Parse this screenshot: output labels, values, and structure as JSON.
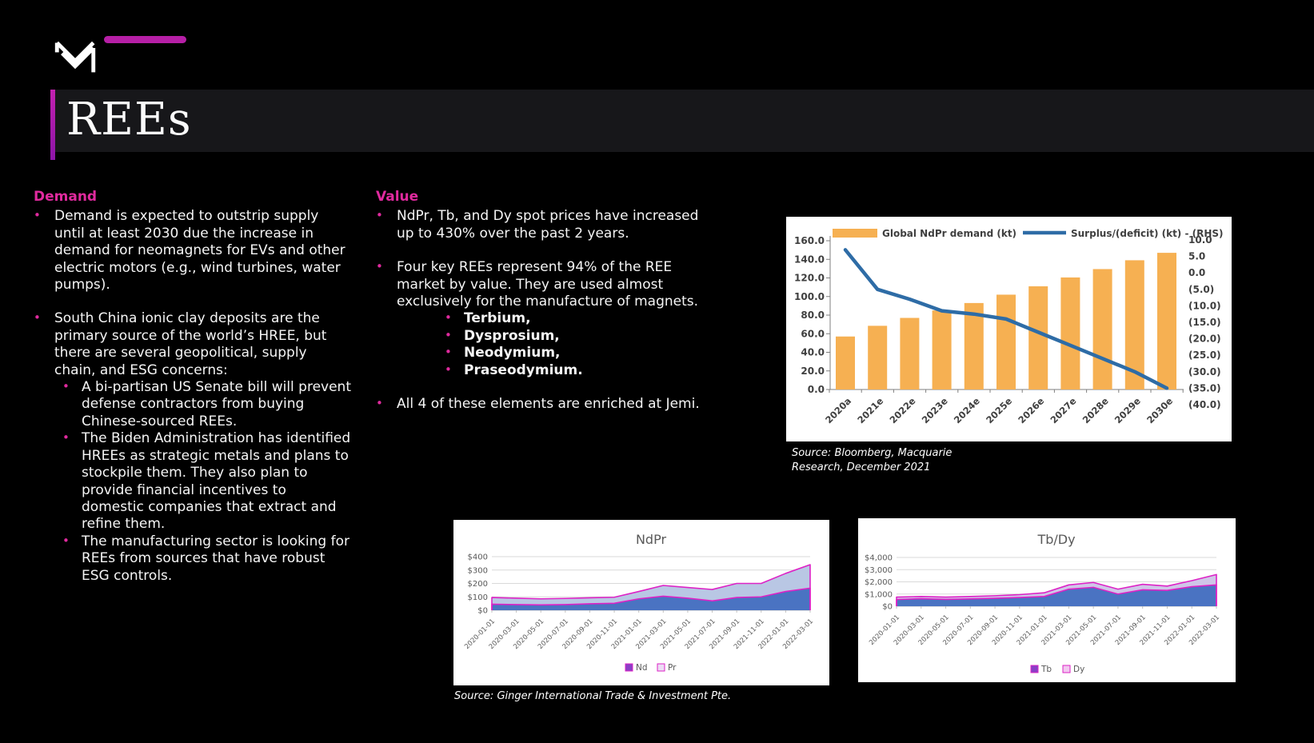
{
  "slide": {
    "title": "REEs"
  },
  "brand": {
    "logo_icon": "m-chevron-logo",
    "dash_icon": "magenta-dash"
  },
  "demand": {
    "heading": "Demand",
    "bullets": [
      {
        "text": "Demand is expected to outstrip supply until at least 2030 due the increase in demand for neomagnets for EVs and other electric motors (e.g., wind turbines, water pumps)."
      },
      {
        "text": "South China ionic clay deposits are the primary source of the world’s HREE, but there are several geopolitical, supply chain, and ESG concerns:",
        "children": [
          {
            "text": "A bi-partisan US Senate bill will prevent defense contractors from buying Chinese-sourced REEs."
          },
          {
            "text": "The Biden Administration has identified HREEs as strategic metals and plans to stockpile them. They also plan to provide financial incentives to domestic companies that extract and refine them."
          },
          {
            "text": "The manufacturing sector is looking for REEs from sources that have robust ESG controls."
          }
        ]
      }
    ]
  },
  "value": {
    "heading": "Value",
    "bullets": [
      {
        "text": "NdPr, Tb, and Dy spot prices have increased up to 430% over the past 2 years."
      },
      {
        "text": "Four key REEs represent 94% of the REE market by value. They are used almost exclusively for the manufacture of magnets.",
        "children": [
          {
            "text": "Terbium,",
            "bold": true
          },
          {
            "text": "Dysprosium,",
            "bold": true
          },
          {
            "text": "Neodymium,",
            "bold": true
          },
          {
            "text": "Praseodymium.",
            "bold": true
          }
        ]
      },
      {
        "text": "All 4 of these elements are enriched at Jemi."
      }
    ]
  },
  "sources": {
    "top_chart_line1": "Source: Bloomberg, Macquarie",
    "top_chart_line2": "Research, December 2021",
    "bottom_chart": "Source: Ginger International Trade & Investment Pte."
  },
  "chart_data": [
    {
      "type": "bar+line",
      "title": "",
      "categories": [
        "2020a",
        "2021e",
        "2022e",
        "2023e",
        "2024e",
        "2025e",
        "2026e",
        "2027e",
        "2028e",
        "2029e",
        "2030e"
      ],
      "series": [
        {
          "name": "Global NdPr demand (kt)",
          "type": "bar",
          "axis": "left",
          "values": [
            57,
            68.5,
            77,
            85,
            93,
            102,
            111,
            120.5,
            129.5,
            139,
            147
          ]
        },
        {
          "name": "Surplus/(deficit) (kt) - (RHS)",
          "type": "line",
          "axis": "right",
          "values": [
            7,
            -5,
            -8,
            -11.5,
            -12.5,
            -14,
            -18,
            -22,
            -26,
            -30,
            -35
          ]
        }
      ],
      "left_axis": {
        "min": 0,
        "max": 160,
        "step": 20
      },
      "right_axis": {
        "min": -40,
        "max": 10,
        "step": 5,
        "negative_format": "parentheses"
      },
      "legend_position": "top",
      "grid": false
    },
    {
      "type": "area",
      "stacked": true,
      "title": "NdPr",
      "x": [
        "2020-01-01",
        "2020-03-01",
        "2020-05-01",
        "2020-07-01",
        "2020-09-01",
        "2020-11-01",
        "2021-01-01",
        "2021-03-01",
        "2021-05-01",
        "2021-07-01",
        "2021-09-01",
        "2021-11-01",
        "2022-01-01",
        "2022-03-01"
      ],
      "series": [
        {
          "name": "Nd",
          "values": [
            45,
            42,
            40,
            42,
            48,
            52,
            85,
            105,
            90,
            70,
            95,
            100,
            140,
            165
          ]
        },
        {
          "name": "Pr",
          "values": [
            50,
            48,
            45,
            46,
            45,
            45,
            55,
            80,
            80,
            85,
            105,
            100,
            135,
            175
          ]
        }
      ],
      "ylim": [
        0,
        400
      ],
      "ystep": 100,
      "yformat": "$",
      "legend_position": "bottom",
      "grid": true
    },
    {
      "type": "area",
      "stacked": true,
      "title": "Tb/Dy",
      "x": [
        "2020-01-01",
        "2020-03-01",
        "2020-05-01",
        "2020-07-01",
        "2020-09-01",
        "2020-11-01",
        "2021-01-01",
        "2021-03-01",
        "2021-05-01",
        "2021-07-01",
        "2021-09-01",
        "2021-11-01",
        "2022-01-01",
        "2022-03-01"
      ],
      "series": [
        {
          "name": "Tb",
          "values": [
            550,
            620,
            560,
            600,
            650,
            720,
            800,
            1400,
            1550,
            1000,
            1350,
            1300,
            1600,
            1750
          ]
        },
        {
          "name": "Dy",
          "values": [
            200,
            180,
            190,
            200,
            210,
            230,
            300,
            350,
            400,
            400,
            450,
            350,
            500,
            850
          ]
        }
      ],
      "ylim": [
        0,
        4000
      ],
      "ystep": 1000,
      "yformat": "$",
      "legend_position": "bottom",
      "grid": true
    }
  ],
  "colors": {
    "accent": "#e02a9e",
    "title_band": "#17171a",
    "bar_orange": "#f6b052",
    "line_blue": "#2e6ca6",
    "area_blue": "#4a73c2",
    "pr_light": "#b9c7e4",
    "dy_light": "#cfc6e8",
    "stroke_magenta": "#dd22c6",
    "legend_nd": "#8a3fc6",
    "legend_pr": "#ecdcf4",
    "legend_tb": "#8a3fc6",
    "legend_dy": "#f2c8f0",
    "chart_text": "#595959",
    "combo_text": "#3f3f3f"
  }
}
